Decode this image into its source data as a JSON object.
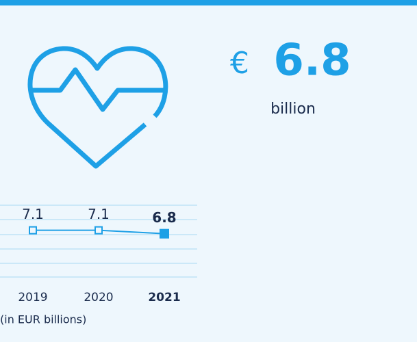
{
  "headline": {
    "currency": "€",
    "value": "6.8",
    "unit": "billion"
  },
  "chart_data": {
    "type": "line",
    "categories": [
      "2019",
      "2020",
      "2021"
    ],
    "values": [
      7.1,
      7.1,
      6.8
    ],
    "color": "#1ea0e6",
    "ylim": [
      3,
      9.3
    ],
    "note": "(in EUR billions)"
  }
}
